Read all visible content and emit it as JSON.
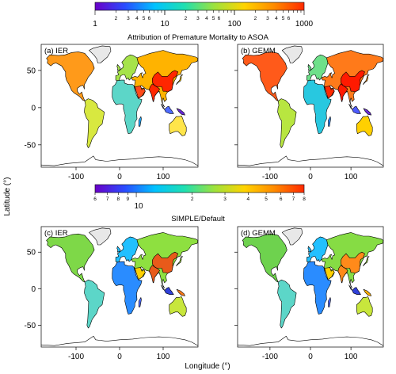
{
  "colorbars": {
    "top": {
      "title": "Attribution of Premature Mortality to ASOA",
      "major_labels": [
        "1",
        "10",
        "100",
        "1000"
      ],
      "minor_labels": [
        "2",
        "3",
        "4",
        "5",
        "6"
      ],
      "colors": [
        "#6a00c8",
        "#2a4cff",
        "#00c2ff",
        "#20e0b0",
        "#9ee23c",
        "#ffd400",
        "#ff8a00",
        "#ff2a00"
      ]
    },
    "bottom": {
      "title": "SIMPLE/Default",
      "minor_left": [
        "6",
        "7",
        "8",
        "9"
      ],
      "major_mid": "10",
      "minor_right": [
        "2",
        "3",
        "4",
        "5",
        "6",
        "7",
        "8"
      ],
      "colors": [
        "#6a00c8",
        "#2a4cff",
        "#00c2ff",
        "#20e0b0",
        "#9ee23c",
        "#ffd400",
        "#ff8a00",
        "#ff2a00"
      ]
    }
  },
  "panels": [
    {
      "id": "a",
      "label": "(a) IER",
      "palette": [
        "#ff9a1a",
        "#ffb300",
        "#ffcc00",
        "#ffe54a",
        "#d8e840",
        "#a6e34a",
        "#5cd6c8",
        "#22aaff",
        "#4e6bff",
        "#6a2bd8",
        "#ff4a1a",
        "#ff2600",
        "#e8e8e8"
      ],
      "tint": "#ffa41a"
    },
    {
      "id": "b",
      "label": "(b) GEMM",
      "palette": [
        "#ff5a1a",
        "#ff7a1a",
        "#ff9a1a",
        "#ffd000",
        "#b8e640",
        "#6ee08a",
        "#28c8e0",
        "#2a8cff",
        "#4e5bff",
        "#6a2bd8",
        "#ff2a00",
        "#ff1a00",
        "#e8e8e8"
      ],
      "tint": "#ff6a1a"
    },
    {
      "id": "c",
      "label": "(c) IER",
      "palette": [
        "#7ed848",
        "#8ee040",
        "#a6e34a",
        "#c8e63c",
        "#5cd6c8",
        "#22c0ff",
        "#2a8cff",
        "#4e6bff",
        "#3040d8",
        "#ff7a1a",
        "#ffd000",
        "#e85a1a",
        "#e8e8e8"
      ],
      "tint": "#8edc44"
    },
    {
      "id": "d",
      "label": "(d) GEMM",
      "palette": [
        "#6ed24e",
        "#86dc44",
        "#a6e34a",
        "#c8e63c",
        "#5cd6c8",
        "#22c0ff",
        "#2a8cff",
        "#4e6bff",
        "#3040d8",
        "#ffb000",
        "#ffd000",
        "#ff8a1a",
        "#e8e8e8"
      ],
      "tint": "#80d84a"
    }
  ],
  "axes": {
    "x_ticks": [
      "-100",
      "0",
      "100"
    ],
    "y_ticks": [
      "50",
      "0",
      "-50"
    ],
    "x_label": "Longitude (°)",
    "y_label": "Latitude (°)"
  }
}
